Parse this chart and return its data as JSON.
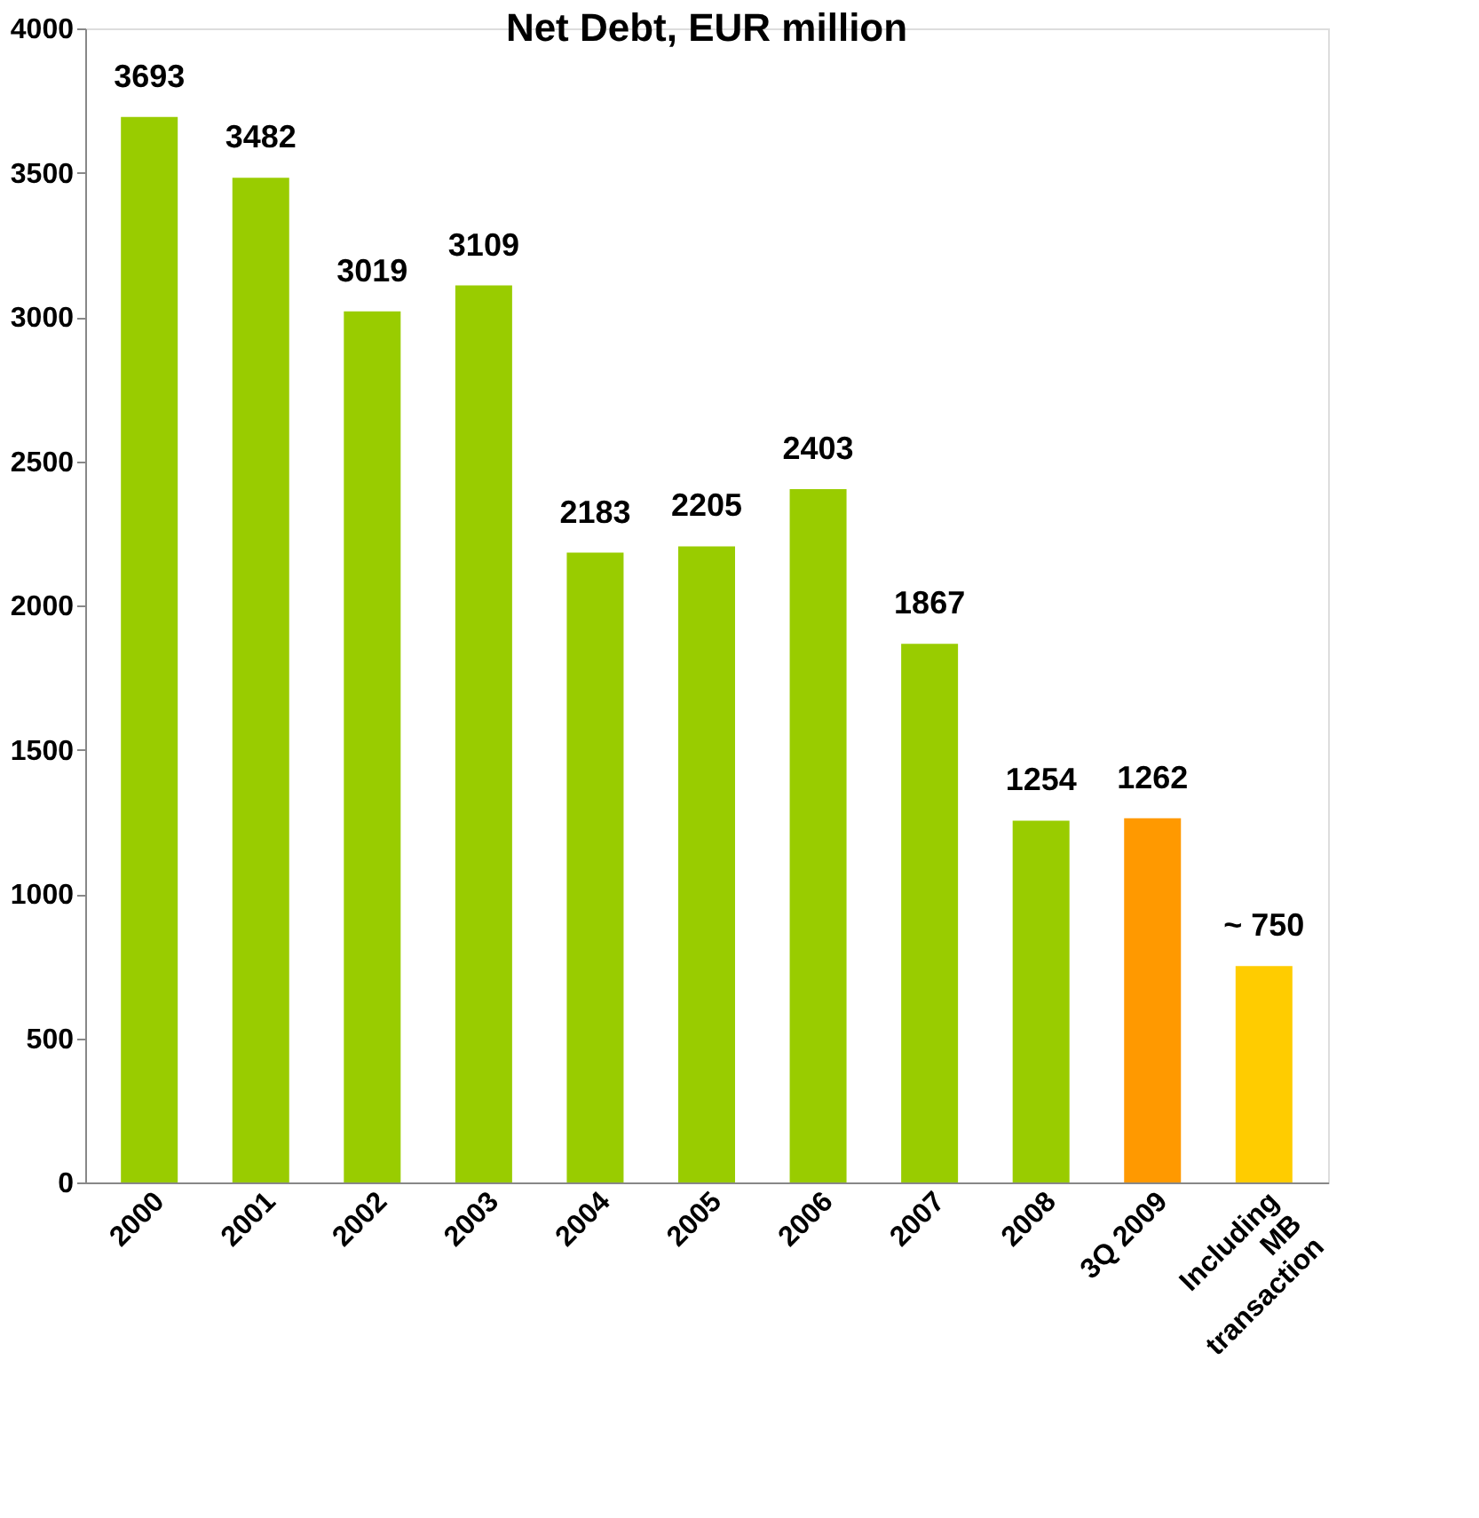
{
  "chart_data": {
    "type": "bar",
    "title": "Net Debt, EUR million",
    "categories": [
      "2000",
      "2001",
      "2002",
      "2003",
      "2004",
      "2005",
      "2006",
      "2007",
      "2008",
      "3Q 2009",
      "Including MB transaction"
    ],
    "values": [
      3693,
      3482,
      3019,
      3109,
      2183,
      2205,
      2403,
      1867,
      1254,
      1262,
      750
    ],
    "colors": [
      "#99cc00",
      "#99cc00",
      "#99cc00",
      "#99cc00",
      "#99cc00",
      "#99cc00",
      "#99cc00",
      "#99cc00",
      "#99cc00",
      "#ff9900",
      "#ffcc00"
    ],
    "value_labels": [
      "3693",
      "3482",
      "3019",
      "3109",
      "2183",
      "2205",
      "2403",
      "1867",
      "1254",
      "1262",
      "~ 750"
    ],
    "ylim": [
      0,
      4000
    ],
    "yticks": [
      0,
      500,
      1000,
      1500,
      2000,
      2500,
      3000,
      3500,
      4000
    ],
    "grid": false
  }
}
